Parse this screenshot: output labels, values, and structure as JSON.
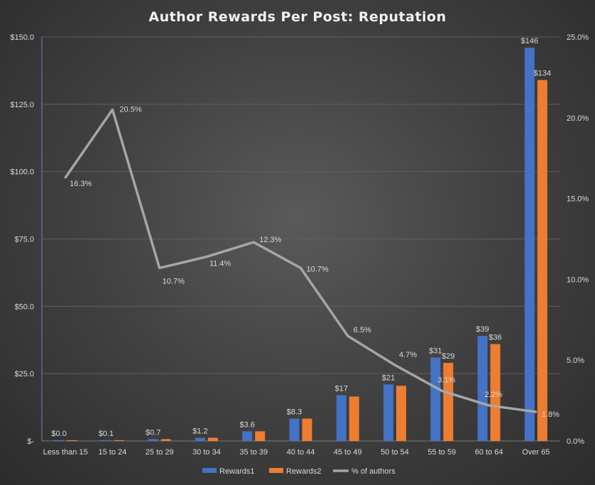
{
  "chart_data": {
    "type": "bar",
    "title": "Author Rewards Per Post: Reputation",
    "categories": [
      "Less than 15",
      "15 to 24",
      "25 to 29",
      "30 to 34",
      "35 to 39",
      "40 to 44",
      "45 to 49",
      "50 to 54",
      "55 to 59",
      "60 to 64",
      "Over 65"
    ],
    "series": [
      {
        "name": "Rewards1",
        "type": "bar",
        "axis": "left",
        "color": "#4472c4",
        "values": [
          0.0,
          0.1,
          0.7,
          1.2,
          3.6,
          8.3,
          17,
          21,
          31,
          39,
          146
        ],
        "labels": [
          "$0.0",
          "$0.1",
          "$0.7",
          "$1.2",
          "$3.6",
          "$8.3",
          "$17",
          "$21",
          "$31",
          "$39",
          "$146"
        ]
      },
      {
        "name": "Rewards2",
        "type": "bar",
        "axis": "left",
        "color": "#ed7d31",
        "values": [
          0.0,
          0.1,
          0.7,
          1.2,
          3.6,
          8.3,
          16.5,
          20.5,
          29,
          36,
          134
        ],
        "labels": [
          "",
          "",
          "",
          "",
          "",
          "",
          "",
          "",
          "$29",
          "$36",
          "$134"
        ]
      },
      {
        "name": "% of authors",
        "type": "line",
        "axis": "right",
        "color": "#a6a6a6",
        "values": [
          16.3,
          20.5,
          10.7,
          11.4,
          12.3,
          10.7,
          6.5,
          4.7,
          3.1,
          2.2,
          1.8
        ],
        "labels": [
          "16.3%",
          "20.5%",
          "10.7%",
          "11.4%",
          "12.3%",
          "10.7%",
          "6.5%",
          "4.7%",
          "3.1%",
          "2.2%",
          "1.8%"
        ]
      }
    ],
    "y_left": {
      "min": 0,
      "max": 150,
      "ticks": [
        0,
        25,
        50,
        75,
        100,
        125,
        150
      ],
      "tick_labels": [
        "$-",
        "$25.0",
        "$50.0",
        "$75.0",
        "$100.0",
        "$125.0",
        "$150.0"
      ]
    },
    "y_right": {
      "min": 0,
      "max": 25,
      "ticks": [
        0,
        5,
        10,
        15,
        20,
        25
      ],
      "tick_labels": [
        "0.0%",
        "5.0%",
        "10.0%",
        "15.0%",
        "20.0%",
        "25.0%"
      ]
    },
    "grid": true,
    "legend_position": "bottom"
  }
}
